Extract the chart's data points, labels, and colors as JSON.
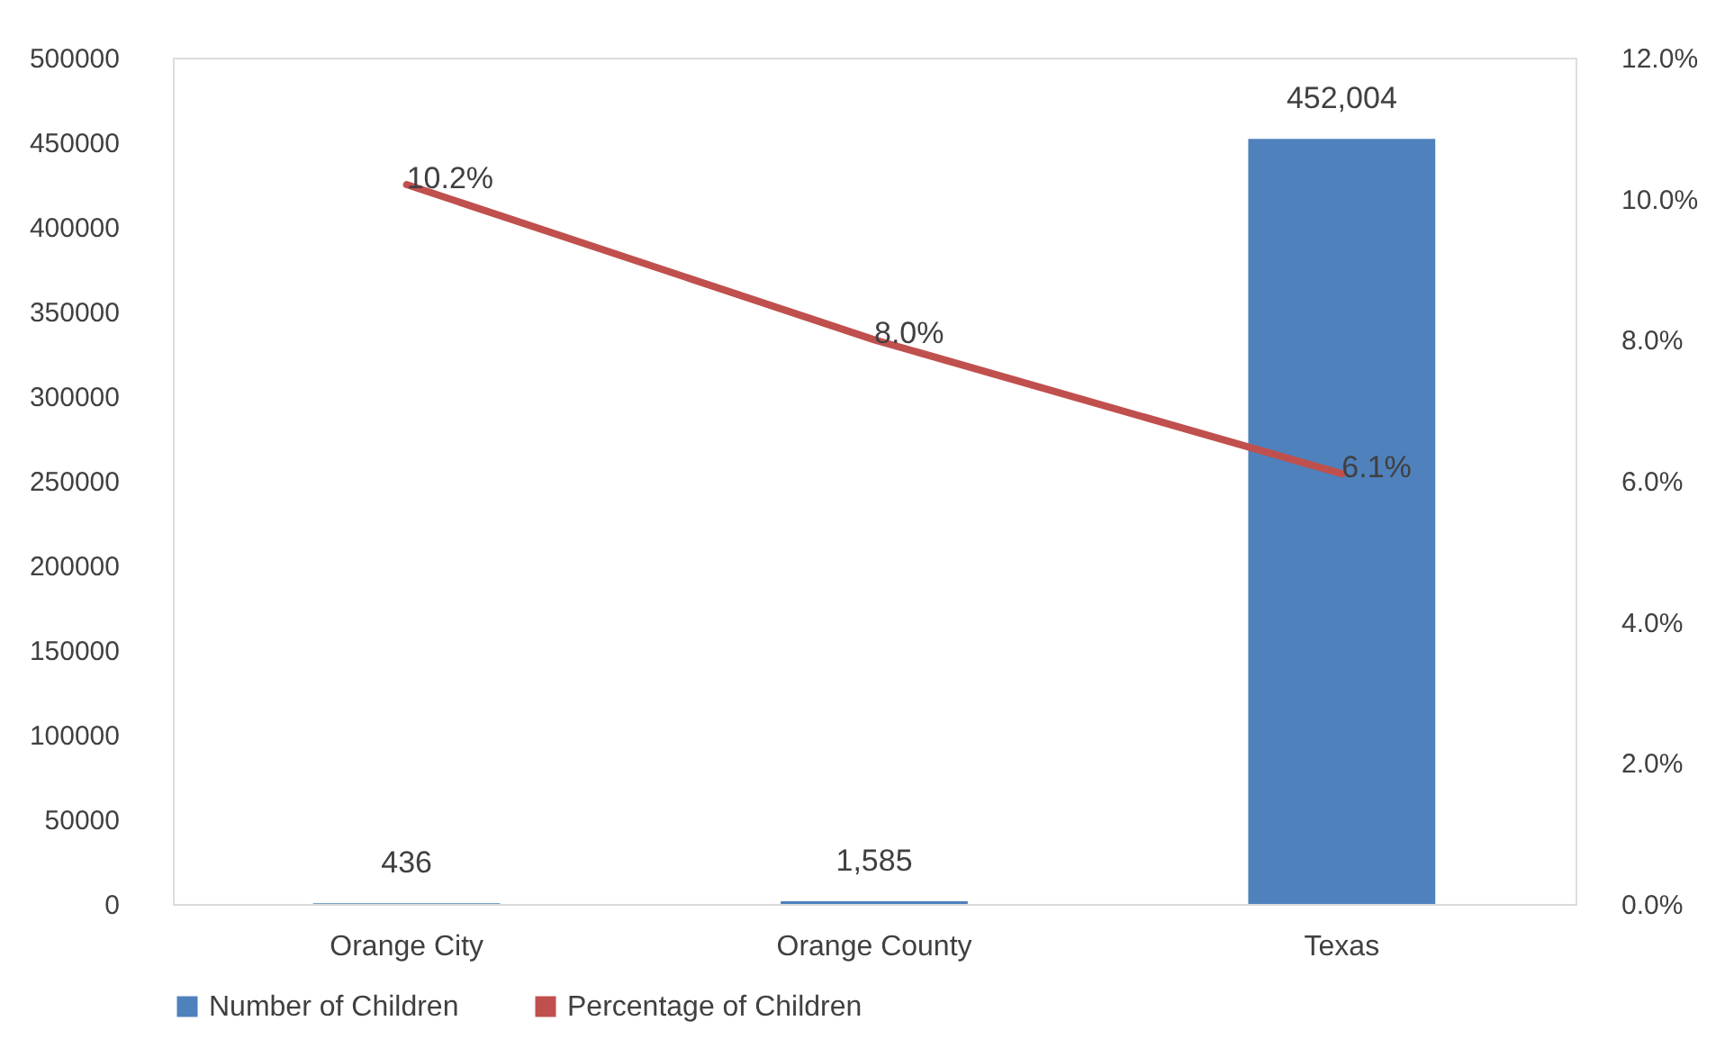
{
  "chart_data": {
    "type": "bar",
    "categories": [
      "Orange City",
      "Orange County",
      "Texas"
    ],
    "series": [
      {
        "name": "Number of Children",
        "color": "#4f81bd",
        "values": [
          436,
          1585,
          452004
        ],
        "value_labels": [
          "436",
          "1,585",
          "452,004"
        ]
      },
      {
        "name": "Percentage of Children",
        "type": "line",
        "axis": "y2",
        "color": "#c0504d",
        "values": [
          10.2,
          8.0,
          6.1
        ],
        "value_labels": [
          "10.2%",
          "8.0%",
          "6.1%"
        ]
      }
    ],
    "ylim": [
      0,
      500000
    ],
    "yticks": [
      0,
      50000,
      100000,
      150000,
      200000,
      250000,
      300000,
      350000,
      400000,
      450000,
      500000
    ],
    "y2lim": [
      0,
      12
    ],
    "y2ticks": [
      {
        "value": 0,
        "label": "0.0%"
      },
      {
        "value": 2,
        "label": "2.0%"
      },
      {
        "value": 4,
        "label": "4.0%"
      },
      {
        "value": 6,
        "label": "6.0%"
      },
      {
        "value": 8,
        "label": "8.0%"
      },
      {
        "value": 10,
        "label": "10.0%"
      },
      {
        "value": 12,
        "label": "12.0%"
      }
    ],
    "grid": false,
    "legend": "bottom",
    "marker": "none"
  }
}
